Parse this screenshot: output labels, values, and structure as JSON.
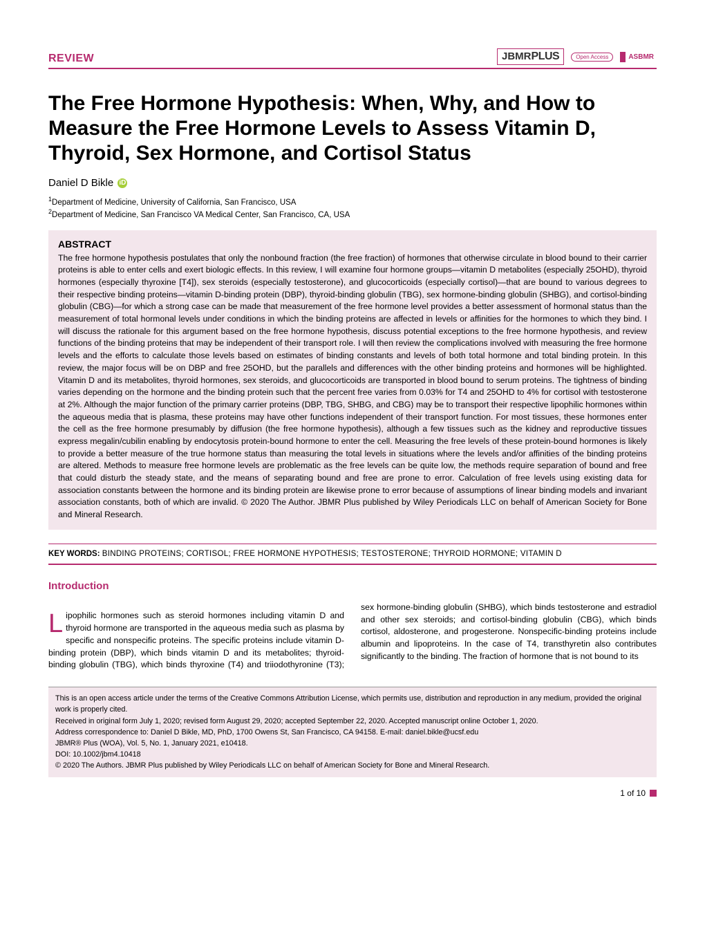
{
  "colors": {
    "brand": "#b62a6e",
    "abstract_bg": "#f3e6ec",
    "text": "#000000",
    "orcid": "#a6ce39"
  },
  "header": {
    "review_label": "REVIEW",
    "logo_jbmr_prefix": "JBMR",
    "logo_jbmr_suffix": "PLUS",
    "open_access": "Open Access",
    "asbmr": "ASBMR"
  },
  "title": "The Free Hormone Hypothesis: When, Why, and How to Measure the Free Hormone Levels to Assess Vitamin D, Thyroid, Sex Hormone, and Cortisol Status",
  "author": "Daniel D Bikle",
  "affiliations": [
    "Department of Medicine, University of California, San Francisco, USA",
    "Department of Medicine, San Francisco VA Medical Center, San Francisco, CA, USA"
  ],
  "abstract": {
    "heading": "ABSTRACT",
    "text": "The free hormone hypothesis postulates that only the nonbound fraction (the free fraction) of hormones that otherwise circulate in blood bound to their carrier proteins is able to enter cells and exert biologic effects. In this review, I will examine four hormone groups—vitamin D metabolites (especially 25OHD), thyroid hormones (especially thyroxine [T4]), sex steroids (especially testosterone), and glucocorticoids (especially cortisol)—that are bound to various degrees to their respective binding proteins—vitamin D-binding protein (DBP), thyroid-binding globulin (TBG), sex hormone-binding globulin (SHBG), and cortisol-binding globulin (CBG)—for which a strong case can be made that measurement of the free hormone level provides a better assessment of hormonal status than the measurement of total hormonal levels under conditions in which the binding proteins are affected in levels or affinities for the hormones to which they bind. I will discuss the rationale for this argument based on the free hormone hypothesis, discuss potential exceptions to the free hormone hypothesis, and review functions of the binding proteins that may be independent of their transport role. I will then review the complications involved with measuring the free hormone levels and the efforts to calculate those levels based on estimates of binding constants and levels of both total hormone and total binding protein. In this review, the major focus will be on DBP and free 25OHD, but the parallels and differences with the other binding proteins and hormones will be highlighted. Vitamin D and its metabolites, thyroid hormones, sex steroids, and glucocorticoids are transported in blood bound to serum proteins. The tightness of binding varies depending on the hormone and the binding protein such that the percent free varies from 0.03% for T4 and 25OHD to 4% for cortisol with testosterone at 2%. Although the major function of the primary carrier proteins (DBP, TBG, SHBG, and CBG) may be to transport their respective lipophilic hormones within the aqueous media that is plasma, these proteins may have other functions independent of their transport function. For most tissues, these hormones enter the cell as the free hormone presumably by diffusion (the free hormone hypothesis), although a few tissues such as the kidney and reproductive tissues express megalin/cubilin enabling by endocytosis protein-bound hormone to enter the cell. Measuring the free levels of these protein-bound hormones is likely to provide a better measure of the true hormone status than measuring the total levels in situations where the levels and/or affinities of the binding proteins are altered. Methods to measure free hormone levels are problematic as the free levels can be quite low, the methods require separation of bound and free that could disturb the steady state, and the means of separating bound and free are prone to error. Calculation of free levels using existing data for association constants between the hormone and its binding protein are likewise prone to error because of assumptions of linear binding models and invariant association constants, both of which are invalid. © 2020 The Author. JBMR Plus published by Wiley Periodicals LLC on behalf of American Society for Bone and Mineral Research."
  },
  "keywords": {
    "label": "KEY WORDS:",
    "list": "BINDING PROTEINS; CORTISOL; FREE HORMONE HYPOTHESIS; TESTOSTERONE; THYROID HORMONE; VITAMIN D"
  },
  "intro": {
    "heading": "Introduction",
    "dropcap": "L",
    "p1_after_drop": "ipophilic hormones such as steroid hormones including vitamin D and thyroid hormone are transported in the aqueous media such as plasma by specific and nonspecific proteins. The specific proteins include vitamin D-binding protein (DBP), which binds vitamin D and its metabolites; thyroid-binding globulin",
    "p1_col2": "(TBG), which binds thyroxine (T4) and triiodothyronine (T3); sex hormone-binding globulin (SHBG), which binds testosterone and estradiol and other sex steroids; and cortisol-binding globulin (CBG), which binds cortisol, aldosterone, and progesterone. Nonspecific-binding proteins include albumin and lipoproteins. In the case of T4, transthyretin also contributes significantly to the binding. The fraction of hormone that is not bound to its"
  },
  "footer": {
    "license": "This is an open access article under the terms of the Creative Commons Attribution License, which permits use, distribution and reproduction in any medium, provided the original work is properly cited.",
    "received": "Received in original form July 1, 2020; revised form August 29, 2020; accepted September 22, 2020. Accepted manuscript online October 1, 2020.",
    "correspondence": "Address correspondence to: Daniel D Bikle, MD, PhD, 1700 Owens St, San Francisco, CA 94158. E-mail: daniel.bikle@ucsf.edu",
    "journal": "JBMR® Plus (WOA), Vol. 5, No. 1, January 2021, e10418.",
    "doi": "DOI: 10.1002/jbm4.10418",
    "copyright": "© 2020 The Authors. JBMR Plus published by Wiley Periodicals LLC on behalf of American Society for Bone and Mineral Research."
  },
  "page_number": "1 of 10"
}
